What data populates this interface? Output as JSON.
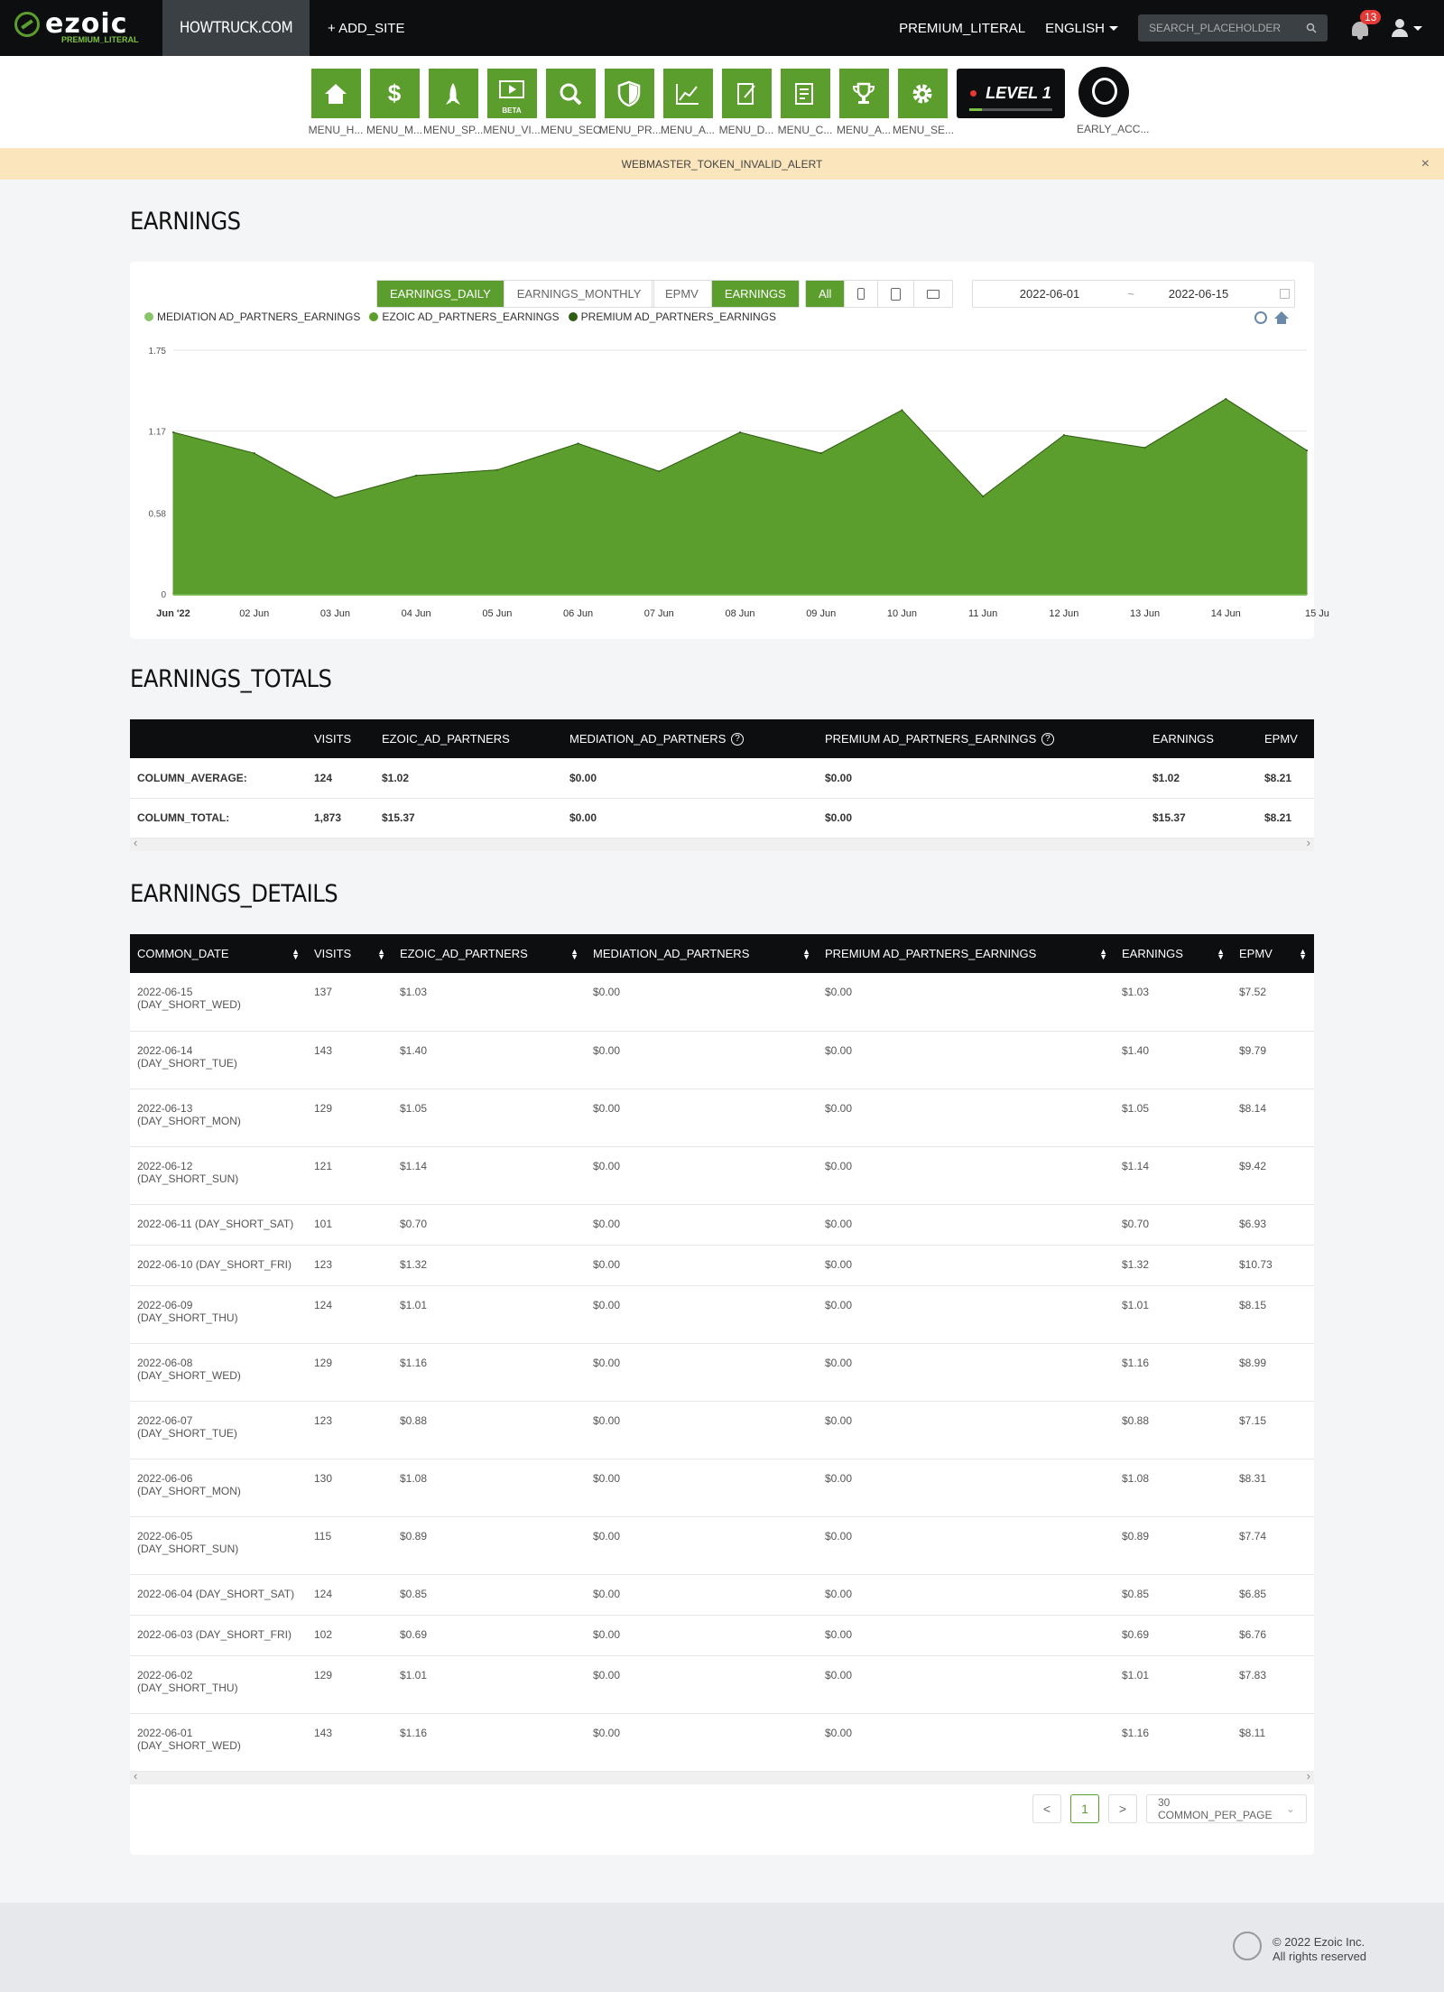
{
  "topbar": {
    "logo_text": "ezoic",
    "logo_sub": "PREMIUM_LITERAL",
    "site_name": "HOWTRUCK.COM",
    "add_site": "+ ADD_SITE",
    "premium_link": "PREMIUM_LITERAL",
    "language": "ENGLISH",
    "search_placeholder": "SEARCH_PLACEHOLDER",
    "notification_count": "13"
  },
  "menu": {
    "items": [
      {
        "label": "MENU_H...",
        "icon": "home-icon"
      },
      {
        "label": "MENU_M...",
        "icon": "dollar-icon"
      },
      {
        "label": "MENU_SP...",
        "icon": "rocket-icon"
      },
      {
        "label": "MENU_VI...",
        "icon": "video-icon",
        "badge": "BETA"
      },
      {
        "label": "MENU_SEO",
        "icon": "magnifier-icon"
      },
      {
        "label": "MENU_PR...",
        "icon": "shield-icon"
      },
      {
        "label": "MENU_A...",
        "icon": "analytics-icon"
      },
      {
        "label": "MENU_D...",
        "icon": "document-icon"
      },
      {
        "label": "MENU_C...",
        "icon": "content-icon"
      },
      {
        "label": "MENU_A...",
        "icon": "trophy-icon"
      },
      {
        "label": "MENU_SE...",
        "icon": "gear-icon"
      }
    ],
    "level_text": "LEVEL 1",
    "level_progress": 0.15,
    "early_label": "EARLY_ACC..."
  },
  "alert": {
    "text": "WEBMASTER_TOKEN_INVALID_ALERT",
    "close": "×"
  },
  "earnings": {
    "title": "EARNINGS",
    "toggle": [
      "EARNINGS_DAILY",
      "EARNINGS_MONTHLY"
    ],
    "metric": [
      "EPMV",
      "EARNINGS"
    ],
    "device_all": "All",
    "date_start": "2022-06-01",
    "date_sep": "~",
    "date_end": "2022-06-15"
  },
  "chart_data": {
    "type": "area",
    "legend_placement": "top-left",
    "series": [
      {
        "name": "MEDIATION AD_PARTNERS_EARNINGS",
        "color": "#8ac46a",
        "values": [
          0,
          0,
          0,
          0,
          0,
          0,
          0,
          0,
          0,
          0,
          0,
          0,
          0,
          0,
          0
        ]
      },
      {
        "name": "EZOIC AD_PARTNERS_EARNINGS",
        "color": "#5c9e2e",
        "values": [
          1.16,
          1.01,
          0.69,
          0.85,
          0.89,
          1.08,
          0.88,
          1.16,
          1.01,
          1.32,
          0.7,
          1.14,
          1.05,
          1.4,
          1.03
        ]
      },
      {
        "name": "PREMIUM AD_PARTNERS_EARNINGS",
        "color": "#2f5d14",
        "values": [
          0,
          0,
          0,
          0,
          0,
          0,
          0,
          0,
          0,
          0,
          0,
          0,
          0,
          0,
          0
        ]
      }
    ],
    "x_labels": [
      "Jun '22",
      "02 Jun",
      "03 Jun",
      "04 Jun",
      "05 Jun",
      "06 Jun",
      "07 Jun",
      "08 Jun",
      "09 Jun",
      "10 Jun",
      "11 Jun",
      "12 Jun",
      "13 Jun",
      "14 Jun",
      "15 Ju"
    ],
    "y_ticks": [
      "0",
      "0.58",
      "1.17",
      "1.75"
    ],
    "ylim": [
      0,
      1.75
    ],
    "grid": true
  },
  "totals": {
    "title": "EARNINGS_TOTALS",
    "headers": [
      "",
      "VISITS",
      "EZOIC_AD_PARTNERS",
      "MEDIATION_AD_PARTNERS",
      "PREMIUM AD_PARTNERS_EARNINGS",
      "EARNINGS",
      "EPMV"
    ],
    "help_mark": "?",
    "rows": [
      [
        "COLUMN_AVERAGE:",
        "124",
        "$1.02",
        "$0.00",
        "$0.00",
        "$1.02",
        "$8.21"
      ],
      [
        "COLUMN_TOTAL:",
        "1,873",
        "$15.37",
        "$0.00",
        "$0.00",
        "$15.37",
        "$8.21"
      ]
    ]
  },
  "details": {
    "title": "EARNINGS_DETAILS",
    "headers": [
      "COMMON_DATE",
      "VISITS",
      "EZOIC_AD_PARTNERS",
      "MEDIATION_AD_PARTNERS",
      "PREMIUM AD_PARTNERS_EARNINGS",
      "EARNINGS",
      "EPMV"
    ],
    "rows": [
      {
        "date": "2022-06-15",
        "day": "(DAY_SHORT_WED)",
        "cells": [
          "137",
          "$1.03",
          "$0.00",
          "$0.00",
          "$1.03",
          "$7.52"
        ]
      },
      {
        "date": "2022-06-14",
        "day": "(DAY_SHORT_TUE)",
        "cells": [
          "143",
          "$1.40",
          "$0.00",
          "$0.00",
          "$1.40",
          "$9.79"
        ]
      },
      {
        "date": "2022-06-13",
        "day": "(DAY_SHORT_MON)",
        "cells": [
          "129",
          "$1.05",
          "$0.00",
          "$0.00",
          "$1.05",
          "$8.14"
        ]
      },
      {
        "date": "2022-06-12",
        "day": "(DAY_SHORT_SUN)",
        "cells": [
          "121",
          "$1.14",
          "$0.00",
          "$0.00",
          "$1.14",
          "$9.42"
        ]
      },
      {
        "date": "2022-06-11",
        "day": "(DAY_SHORT_SAT)",
        "inline": true,
        "cells": [
          "101",
          "$0.70",
          "$0.00",
          "$0.00",
          "$0.70",
          "$6.93"
        ]
      },
      {
        "date": "2022-06-10",
        "day": "(DAY_SHORT_FRI)",
        "inline": true,
        "cells": [
          "123",
          "$1.32",
          "$0.00",
          "$0.00",
          "$1.32",
          "$10.73"
        ]
      },
      {
        "date": "2022-06-09",
        "day": "(DAY_SHORT_THU)",
        "cells": [
          "124",
          "$1.01",
          "$0.00",
          "$0.00",
          "$1.01",
          "$8.15"
        ]
      },
      {
        "date": "2022-06-08",
        "day": "(DAY_SHORT_WED)",
        "cells": [
          "129",
          "$1.16",
          "$0.00",
          "$0.00",
          "$1.16",
          "$8.99"
        ]
      },
      {
        "date": "2022-06-07",
        "day": "(DAY_SHORT_TUE)",
        "cells": [
          "123",
          "$0.88",
          "$0.00",
          "$0.00",
          "$0.88",
          "$7.15"
        ]
      },
      {
        "date": "2022-06-06",
        "day": "(DAY_SHORT_MON)",
        "cells": [
          "130",
          "$1.08",
          "$0.00",
          "$0.00",
          "$1.08",
          "$8.31"
        ]
      },
      {
        "date": "2022-06-05",
        "day": "(DAY_SHORT_SUN)",
        "cells": [
          "115",
          "$0.89",
          "$0.00",
          "$0.00",
          "$0.89",
          "$7.74"
        ]
      },
      {
        "date": "2022-06-04",
        "day": "(DAY_SHORT_SAT)",
        "inline": true,
        "cells": [
          "124",
          "$0.85",
          "$0.00",
          "$0.00",
          "$0.85",
          "$6.85"
        ]
      },
      {
        "date": "2022-06-03",
        "day": "(DAY_SHORT_FRI)",
        "inline": true,
        "cells": [
          "102",
          "$0.69",
          "$0.00",
          "$0.00",
          "$0.69",
          "$6.76"
        ]
      },
      {
        "date": "2022-06-02",
        "day": "(DAY_SHORT_THU)",
        "cells": [
          "129",
          "$1.01",
          "$0.00",
          "$0.00",
          "$1.01",
          "$7.83"
        ]
      },
      {
        "date": "2022-06-01",
        "day": "(DAY_SHORT_WED)",
        "cells": [
          "143",
          "$1.16",
          "$0.00",
          "$0.00",
          "$1.16",
          "$8.11"
        ]
      }
    ],
    "pager": {
      "prev": "<",
      "page": "1",
      "next": ">",
      "per_page": "30 COMMON_PER_PAGE"
    }
  },
  "footer": {
    "copyright": "© 2022 Ezoic Inc.",
    "rights": "All rights reserved"
  }
}
